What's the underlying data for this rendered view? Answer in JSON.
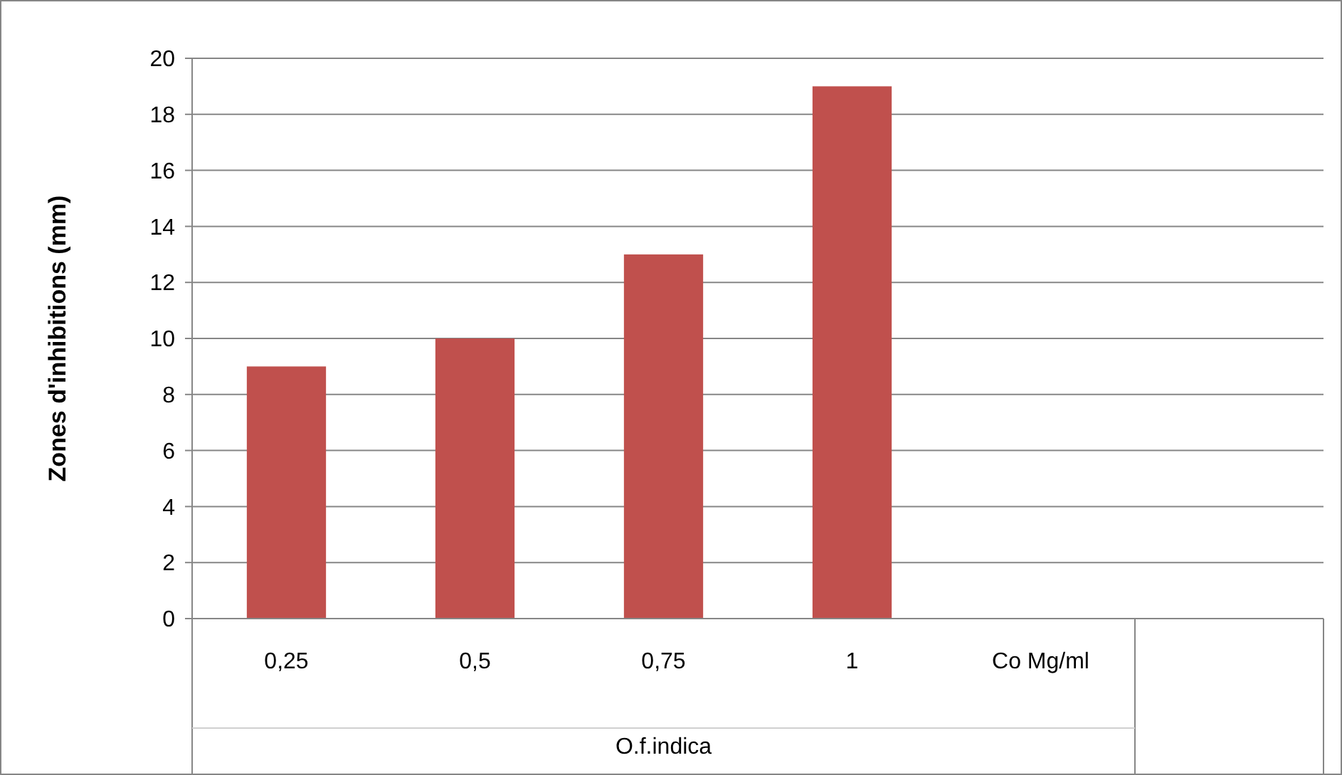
{
  "chart_data": {
    "type": "bar",
    "ylabel": "Zones d'inhibitions (mm)",
    "xlabel": "O.f.indica",
    "categories": [
      "0,25",
      "0,5",
      "0,75",
      "1",
      "Co Mg/ml",
      null
    ],
    "values": [
      9,
      10,
      13,
      19,
      null,
      null
    ],
    "color": "#c0504d",
    "ylim": [
      0,
      20
    ],
    "yticks": [
      0,
      2,
      4,
      6,
      8,
      10,
      12,
      14,
      16,
      18,
      20
    ],
    "grid": "y"
  }
}
